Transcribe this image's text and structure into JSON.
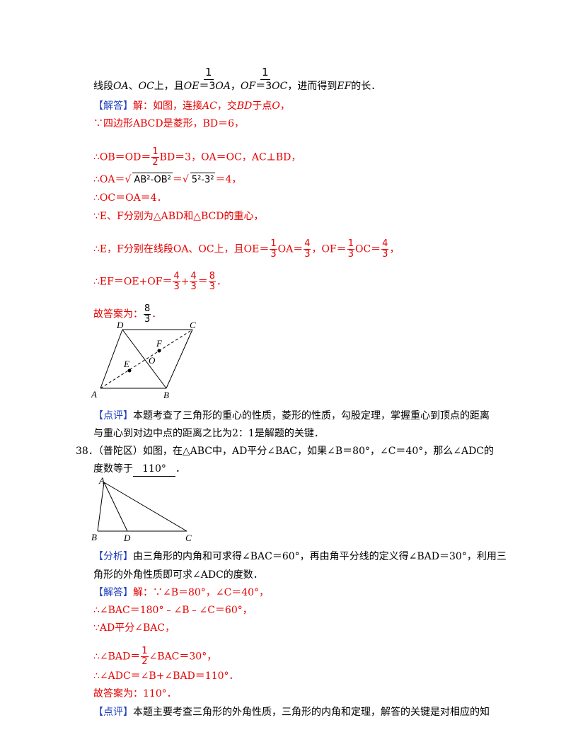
{
  "doc": {
    "l1_a": "线段",
    "l1_oa": "OA",
    "l1_b": "、",
    "l1_oc": "OC",
    "l1_c": "上，且",
    "l1_oe": "OE",
    "l1_d": "＝",
    "l1_oa2": "OA",
    "l1_e": "，",
    "l1_of": "OF",
    "l1_f": "＝",
    "l1_oc2": "OC",
    "l1_g": "，进而得到",
    "l1_ef": "EF",
    "l1_h": "的长．",
    "frac_1": "1",
    "frac_3": "3",
    "frac_2": "2",
    "frac_4": "4",
    "frac_8": "8",
    "jd_tag": "【解答】",
    "jd1": "解：如图，连接",
    "jd1_ac": "AC",
    "jd1_b": "，交",
    "jd1_bd": "BD",
    "jd1_c": "于点",
    "jd1_o": "O",
    "jd1_d": "，",
    "l3": "∵四边形ABCD是菱形，BD＝6，",
    "l4_a": "∴OB＝OD＝",
    "l4_b": "BD＝3，OA＝OC，AC⊥BD，",
    "l5_a": "∴OA＝",
    "l5_sqrt1": "AB²-OB²",
    "l5_b": "＝",
    "l5_sqrt2": "5²-3²",
    "l5_c": "＝4，",
    "l6": "∴OC＝OA＝4．",
    "l7": "∵E、F分别为△ABD和△BCD的重心，",
    "l8_a": "∴E，F分别在线段OA、OC上，且OE＝",
    "l8_b": "OA＝",
    "l8_c": "，OF＝",
    "l8_d": "OC＝",
    "l8_e": "，",
    "l9_a": "∴EF＝OE+OF＝",
    "l9_b": "+",
    "l9_c": "＝",
    "l9_d": "．",
    "ans1": "故答案为：",
    "ans1_end": "．",
    "fig1": {
      "A": "A",
      "B": "B",
      "C": "C",
      "D": "D",
      "E": "E",
      "F": "F",
      "O": "O"
    },
    "dp_tag": "【点评】",
    "dp1_a": "本题考查了三角形的重心的性质，菱形的性质，勾股定理，掌握重心到顶点的距离",
    "dp1_b": "与重心到对边中点的距离之比为2：1是解题的关键．",
    "q38_num": "38．",
    "q38_a": "（普陀区）如图，在△ABC中，AD平分∠BAC，如果∠B＝80°，∠C＝40°，那么∠ADC的",
    "q38_b": "度数等于",
    "q38_ans": "110°",
    "q38_end": "．",
    "fig2": {
      "A": "A",
      "B": "B",
      "C": "C",
      "D": "D"
    },
    "fx_tag": "【分析】",
    "fx_a": "由三角形的内角和可求得∠BAC＝60°，再由角平分线的定义得∠BAD＝30°，利用三",
    "fx_b": "角形的外角性质即可求∠ADC的度数．",
    "jd2_tag": "【解答】",
    "jd2_a": "解：∵∠B＝80°，∠C＝40°，",
    "jd2_b": "∴∠BAC＝180°﹣∠B﹣∠C＝60°，",
    "jd2_c": "∵AD平分∠BAC，",
    "jd2_d1": "∴∠BAD＝",
    "jd2_d2": "∠BAC＝30°，",
    "jd2_e": "∴∠ADC＝∠B+∠BAD＝110°．",
    "ans2": "故答案为：110°．",
    "dp2_tag": "【点评】",
    "dp2_a": "本题主要考查三角形的外角性质，三角形的内角和定理，解答的关键是对相应的知"
  }
}
